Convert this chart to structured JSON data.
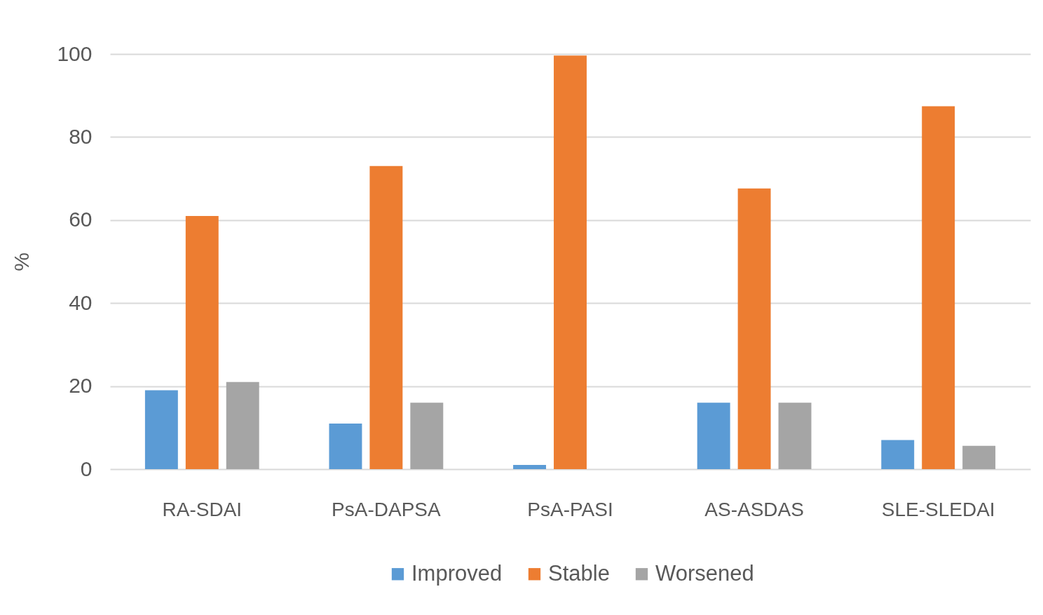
{
  "chart_data": {
    "type": "bar",
    "ylabel": "%",
    "categories": [
      "RA-SDAI",
      "PsA-DAPSA",
      "PsA-PASI",
      "AS-ASDAS",
      "SLE-SLEDAI"
    ],
    "series": [
      {
        "name": "Improved",
        "color": "#5b9bd5",
        "values": [
          19,
          11,
          1,
          16,
          7
        ]
      },
      {
        "name": "Stable",
        "color": "#ed7d31",
        "values": [
          61,
          73,
          99.6,
          67.6,
          87.4
        ]
      },
      {
        "name": "Worsened",
        "color": "#a5a5a5",
        "values": [
          21,
          16,
          null,
          16,
          5.6
        ]
      }
    ],
    "ylim": [
      0,
      100
    ],
    "yticks": [
      0,
      20,
      40,
      60,
      80,
      100
    ],
    "grid": "y",
    "legend": "bottom"
  }
}
